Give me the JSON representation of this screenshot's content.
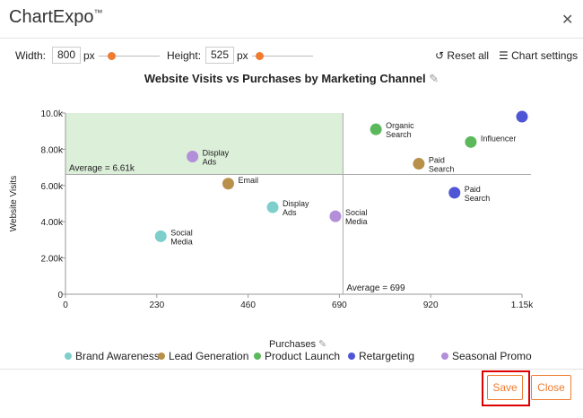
{
  "app": {
    "brand": "ChartExpo",
    "tm": "™"
  },
  "toolbar": {
    "width_label": "Width:",
    "width_value": "800",
    "px1": "px",
    "height_label": "Height:",
    "height_value": "525",
    "px2": "px",
    "reset": "Reset all",
    "settings": "Chart settings"
  },
  "buttons": {
    "save": "Save",
    "close": "Close"
  },
  "chart_data": {
    "type": "scatter",
    "title": "Website Visits vs Purchases by Marketing Channel",
    "xlabel": "Purchases",
    "ylabel": "Website Visits",
    "xlim": [
      0,
      1150
    ],
    "ylim": [
      0,
      10000
    ],
    "xticks": [
      "0",
      "230",
      "460",
      "690",
      "920",
      "1.15k"
    ],
    "yticks": [
      "0",
      "2.00k",
      "4.00k",
      "6.00k",
      "8.00k",
      "10.0k"
    ],
    "avg_y_label": "Average = 6.61k",
    "avg_y": 6610,
    "avg_x_label": "Average = 699",
    "avg_x": 699,
    "series": [
      {
        "name": "Brand Awareness",
        "color": "#7ecfcc",
        "points": [
          {
            "x": 240,
            "y": 3200,
            "label": "Social Media"
          },
          {
            "x": 522,
            "y": 4800,
            "label": "Display Ads"
          }
        ]
      },
      {
        "name": "Lead Generation",
        "color": "#b8904a",
        "points": [
          {
            "x": 410,
            "y": 6100,
            "label": "Email"
          },
          {
            "x": 890,
            "y": 7200,
            "label": "Paid Search"
          }
        ]
      },
      {
        "name": "Product Launch",
        "color": "#5bb85b",
        "points": [
          {
            "x": 782,
            "y": 9100,
            "label": "Organic Search"
          },
          {
            "x": 1021,
            "y": 8400,
            "label": "Influencer"
          }
        ]
      },
      {
        "name": "Retargeting",
        "color": "#4f56d6",
        "points": [
          {
            "x": 980,
            "y": 5600,
            "label": "Paid Search"
          },
          {
            "x": 1150,
            "y": 9800,
            "label": ""
          }
        ]
      },
      {
        "name": "Seasonal Promo",
        "color": "#b48fd9",
        "points": [
          {
            "x": 320,
            "y": 7600,
            "label": "Display Ads"
          },
          {
            "x": 680,
            "y": 4300,
            "label": "Social Media"
          }
        ]
      }
    ]
  }
}
